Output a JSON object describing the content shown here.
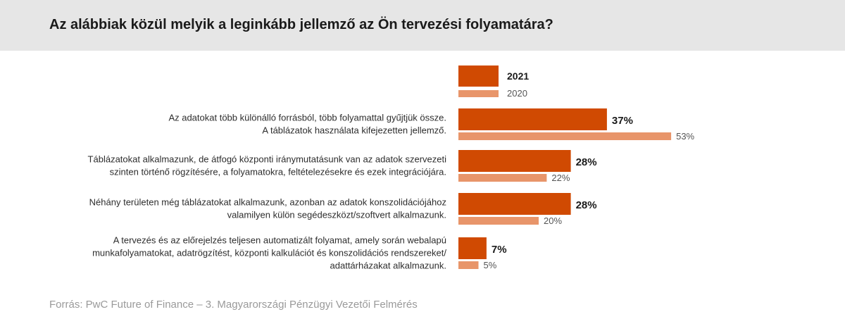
{
  "header": {
    "title": "Az alábbiak közül melyik a leginkább jellemző az Ön tervezési folyamatára?"
  },
  "source": "Forrás: PwC Future of Finance – 3. Magyarországi Pénzügyi Vezetői Felmérés",
  "colors": {
    "current": "#d04a02",
    "previous": "#e8956a"
  },
  "chart_data": {
    "type": "bar",
    "orientation": "horizontal",
    "legend_placement": "top",
    "grid": false,
    "categories": [
      [
        "Az adatokat több különálló forrásból, több folyamattal gyűjtjük össze.",
        "A táblázatok használata kifejezetten jellemző."
      ],
      [
        "Táblázatokat alkalmazunk, de átfogó központi iránymutatásunk van az adatok szervezeti",
        "szinten történő rögzítésére, a folyamatokra, feltételezésekre és ezek integrációjára."
      ],
      [
        "Néhány területen még táblázatokat alkalmazunk, azonban az adatok konszolidációjához",
        "valamilyen külön segédeszközt/szoftvert alkalmazunk."
      ],
      [
        "A tervezés és az előrejelzés teljesen automatizált folyamat, amely során webalapú",
        "munkafolyamatokat, adatrögzítést, központi kalkulációt és konszolidációs rendszereket/",
        "adattárházakat alkalmazunk."
      ]
    ],
    "series": [
      {
        "name": "2021",
        "values": [
          37,
          28,
          28,
          7
        ],
        "labels": [
          "37%",
          "28%",
          "28%",
          "7%"
        ],
        "color": "#d04a02"
      },
      {
        "name": "2020",
        "values": [
          53,
          22,
          20,
          5
        ],
        "labels": [
          "53%",
          "22%",
          "20%",
          "5%"
        ],
        "color": "#e8956a"
      }
    ]
  }
}
